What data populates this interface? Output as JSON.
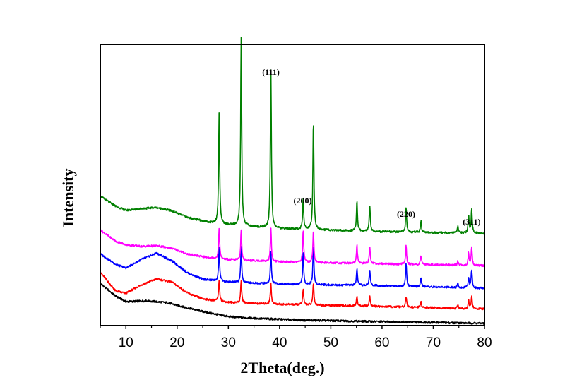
{
  "chart_data": {
    "type": "line",
    "title": "",
    "xlabel": "2Theta(deg.)",
    "ylabel": "Intensity",
    "xlim": [
      5,
      80
    ],
    "ylim": [
      0,
      100
    ],
    "x_ticks": [
      10,
      20,
      30,
      40,
      50,
      60,
      70,
      80
    ],
    "x_tick_labels": [
      "10",
      "20",
      "30",
      "40",
      "50",
      "60",
      "70",
      "80"
    ],
    "y_ticks_shown": false,
    "grid": false,
    "legend": "none",
    "peak_labels": [
      {
        "text": "(111)",
        "x": 38.3
      },
      {
        "text": "(200)",
        "x": 44.5
      },
      {
        "text": "(220)",
        "x": 64.7
      },
      {
        "text": "(311)",
        "x": 77.5
      }
    ],
    "series": [
      {
        "name": "black",
        "color": "#000000",
        "background": [
          [
            5,
            15
          ],
          [
            8,
            10.5
          ],
          [
            10,
            8.5
          ],
          [
            14,
            8.8
          ],
          [
            18,
            8.2
          ],
          [
            22,
            6.3
          ],
          [
            26,
            4.6
          ],
          [
            30,
            3.2
          ],
          [
            35,
            2.6
          ],
          [
            45,
            1.9
          ],
          [
            60,
            1.4
          ],
          [
            80,
            0.8
          ]
        ],
        "peaks": []
      },
      {
        "name": "red",
        "color": "#ff0000",
        "background": [
          [
            5,
            19
          ],
          [
            8,
            12.3
          ],
          [
            10,
            11.5
          ],
          [
            13,
            14.5
          ],
          [
            16,
            16.6
          ],
          [
            19,
            15.5
          ],
          [
            22,
            11.6
          ],
          [
            25,
            9.5
          ],
          [
            30,
            8.3
          ],
          [
            40,
            7.6
          ],
          [
            60,
            6.8
          ],
          [
            80,
            5.9
          ]
        ],
        "peaks": [
          [
            28.2,
            7.5
          ],
          [
            32.5,
            8.0
          ],
          [
            38.3,
            7.5
          ],
          [
            44.6,
            5.5
          ],
          [
            46.6,
            8.0
          ],
          [
            55.1,
            3.5
          ],
          [
            57.6,
            3.5
          ],
          [
            64.7,
            3.8
          ],
          [
            67.6,
            2.0
          ],
          [
            74.8,
            1.2
          ],
          [
            76.9,
            3.0
          ],
          [
            77.5,
            4.5
          ]
        ]
      },
      {
        "name": "blue",
        "color": "#0000ff",
        "background": [
          [
            5,
            25.5
          ],
          [
            8,
            21.8
          ],
          [
            10,
            20.5
          ],
          [
            13,
            23.5
          ],
          [
            16,
            25.8
          ],
          [
            19,
            23.0
          ],
          [
            22,
            18.8
          ],
          [
            25,
            16.5
          ],
          [
            30,
            15.5
          ],
          [
            40,
            14.8
          ],
          [
            60,
            14.2
          ],
          [
            80,
            13.3
          ]
        ],
        "peaks": [
          [
            28.2,
            12.0
          ],
          [
            32.5,
            12.5
          ],
          [
            38.3,
            11.5
          ],
          [
            44.6,
            11.5
          ],
          [
            46.6,
            14.0
          ],
          [
            55.1,
            6.0
          ],
          [
            57.6,
            5.5
          ],
          [
            64.7,
            8.5
          ],
          [
            67.6,
            3.0
          ],
          [
            74.8,
            1.5
          ],
          [
            76.9,
            3.5
          ],
          [
            77.5,
            6.5
          ]
        ]
      },
      {
        "name": "magenta",
        "color": "#ff00ff",
        "background": [
          [
            5,
            34
          ],
          [
            8,
            30
          ],
          [
            10,
            28.8
          ],
          [
            13,
            28.2
          ],
          [
            16,
            28.4
          ],
          [
            19,
            27.5
          ],
          [
            22,
            25.5
          ],
          [
            26,
            24.2
          ],
          [
            30,
            23.5
          ],
          [
            40,
            22.7
          ],
          [
            60,
            22.0
          ],
          [
            80,
            21.3
          ]
        ],
        "peaks": [
          [
            28.2,
            11.0
          ],
          [
            32.5,
            10.5
          ],
          [
            38.3,
            12.0
          ],
          [
            44.6,
            11.5
          ],
          [
            46.6,
            11.5
          ],
          [
            55.1,
            6.5
          ],
          [
            57.6,
            6.0
          ],
          [
            64.7,
            6.5
          ],
          [
            67.6,
            3.0
          ],
          [
            74.8,
            1.5
          ],
          [
            76.9,
            4.5
          ],
          [
            77.5,
            6.5
          ]
        ]
      },
      {
        "name": "green",
        "color": "#008000",
        "background": [
          [
            5,
            46
          ],
          [
            8,
            42.5
          ],
          [
            10,
            41.0
          ],
          [
            13,
            41.6
          ],
          [
            16,
            42.0
          ],
          [
            19,
            40.8
          ],
          [
            22,
            38.5
          ],
          [
            26,
            36.8
          ],
          [
            30,
            35.8
          ],
          [
            40,
            34.5
          ],
          [
            60,
            33.4
          ],
          [
            80,
            32.8
          ]
        ],
        "peaks": [
          [
            28.2,
            40.0
          ],
          [
            32.5,
            67.0
          ],
          [
            38.3,
            56.5
          ],
          [
            44.6,
            11.0
          ],
          [
            46.6,
            38.5
          ],
          [
            55.1,
            10.5
          ],
          [
            57.6,
            9.5
          ],
          [
            64.7,
            9.0
          ],
          [
            67.6,
            4.0
          ],
          [
            74.8,
            2.5
          ],
          [
            76.9,
            6.5
          ],
          [
            77.5,
            8.5
          ]
        ]
      }
    ]
  }
}
